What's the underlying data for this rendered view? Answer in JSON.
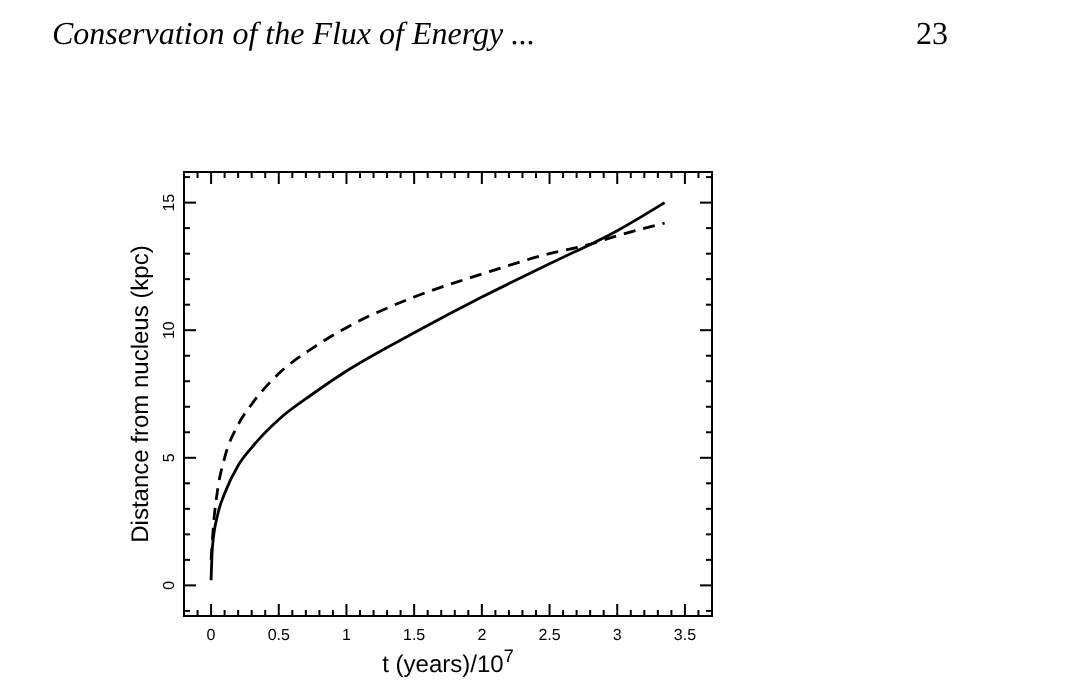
{
  "chart_data": {
    "type": "line",
    "title": "Conservation of the Flux of Energy ...",
    "annotations": [
      "23"
    ],
    "xlabel": "t (years)/10$^{7}$",
    "ylabel": "Distance from nucleus (kpc)",
    "xlim": [
      -0.2,
      3.7
    ],
    "ylim": [
      -1.2,
      16.2
    ],
    "xticks": [
      {
        "value": -0.1,
        "label": null
      },
      0,
      {
        "value": 0.1,
        "label": null
      },
      {
        "value": 0.2,
        "label": null
      },
      {
        "value": 0.3,
        "label": null
      },
      {
        "value": 0.4,
        "label": null
      },
      0.5,
      {
        "value": 0.6,
        "label": null
      },
      {
        "value": 0.7,
        "label": null
      },
      {
        "value": 0.8,
        "label": null
      },
      {
        "value": 0.9,
        "label": null
      },
      1,
      {
        "value": 1.1,
        "label": null
      },
      {
        "value": 1.2,
        "label": null
      },
      {
        "value": 1.3,
        "label": null
      },
      {
        "value": 1.4,
        "label": null
      },
      1.5,
      {
        "value": 1.6,
        "label": null
      },
      {
        "value": 1.7,
        "label": null
      },
      {
        "value": 1.8,
        "label": null
      },
      {
        "value": 1.9,
        "label": null
      },
      2,
      {
        "value": 2.1,
        "label": null
      },
      {
        "value": 2.2,
        "label": null
      },
      {
        "value": 2.3,
        "label": null
      },
      {
        "value": 2.4,
        "label": null
      },
      2.5,
      {
        "value": 2.6,
        "label": null
      },
      {
        "value": 2.7,
        "label": null
      },
      {
        "value": 2.8,
        "label": null
      },
      {
        "value": 2.9,
        "label": null
      },
      3,
      {
        "value": 3.1,
        "label": null
      },
      {
        "value": 3.2,
        "label": null
      },
      {
        "value": 3.3,
        "label": null
      },
      {
        "value": 3.4,
        "label": null
      },
      3.5,
      {
        "value": 3.6,
        "label": null
      }
    ],
    "yticks": [
      {
        "value": -1,
        "label": null
      },
      0,
      {
        "value": 1,
        "label": null
      },
      {
        "value": 2,
        "label": null
      },
      {
        "value": 3,
        "label": null
      },
      {
        "value": 4,
        "label": null
      },
      5,
      {
        "value": 6,
        "label": null
      },
      {
        "value": 7,
        "label": null
      },
      {
        "value": 8,
        "label": null
      },
      {
        "value": 9,
        "label": null
      },
      10,
      {
        "value": 11,
        "label": null
      },
      {
        "value": 12,
        "label": null
      },
      {
        "value": 13,
        "label": null
      },
      {
        "value": 14,
        "label": null
      },
      15,
      {
        "value": 16,
        "label": null
      }
    ],
    "marker": "none",
    "series": [
      {
        "color": "#000000",
        "line_style": "solid",
        "x": [
          0,
          0.01,
          0.05,
          0.1,
          0.2,
          0.3,
          0.5,
          0.75,
          1,
          1.5,
          2,
          2.5,
          3,
          3.35
        ],
        "values": [
          0.2,
          1.5,
          2.8,
          3.6,
          4.7,
          5.4,
          6.5,
          7.5,
          8.4,
          9.9,
          11.3,
          12.6,
          13.9,
          15
        ]
      },
      {
        "color": "#000000",
        "line_style": "dashed",
        "x": [
          0,
          0.02,
          0.05,
          0.1,
          0.2,
          0.3,
          0.5,
          0.75,
          1,
          1.5,
          2,
          2.5,
          2.75,
          3,
          3.35
        ],
        "values": [
          1,
          2.5,
          3.8,
          5,
          6.3,
          7.1,
          8.3,
          9.3,
          10.1,
          11.3,
          12.2,
          13,
          13.3,
          13.7,
          14.2
        ]
      }
    ]
  }
}
